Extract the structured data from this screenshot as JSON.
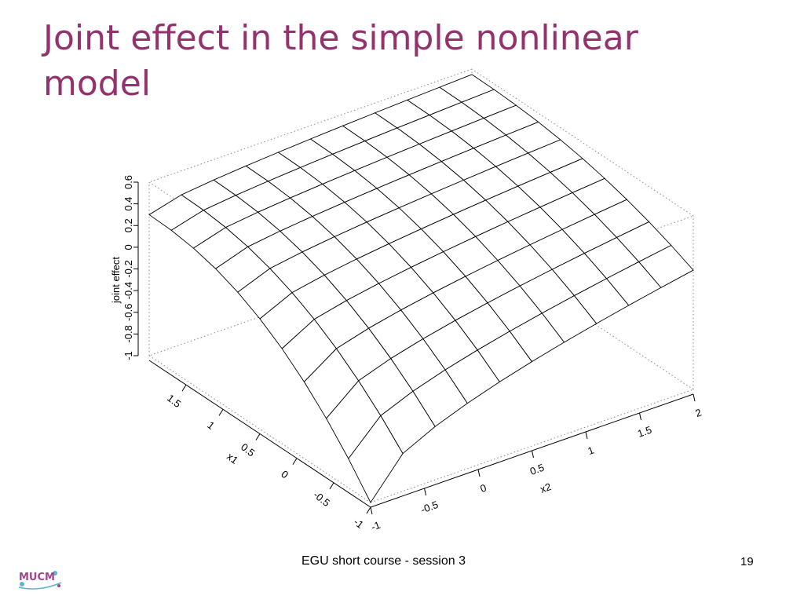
{
  "slide": {
    "title": "Joint effect in the simple nonlinear model",
    "footer": "EGU short course - session 3",
    "page_number": "19",
    "logo_text": "MUCM"
  },
  "chart_data": {
    "type": "surface",
    "zlabel": "joint effect",
    "xlabel": "x1",
    "ylabel": "x2",
    "x1_ticks": [
      "-1",
      "-0.5",
      "0",
      "0.5",
      "1",
      "1.5"
    ],
    "x2_ticks": [
      "-1",
      "-0.5",
      "0",
      "0.5",
      "1",
      "1.5",
      "2"
    ],
    "z_ticks": [
      "-1",
      "-0.8",
      "-0.6",
      "-0.4",
      "-0.2",
      "0",
      "0.2",
      "0.4",
      "0.6"
    ],
    "x1_range": [
      -1,
      2
    ],
    "x2_range": [
      -1,
      2
    ],
    "z_range": [
      -1,
      0.6
    ],
    "grid_size": [
      11,
      11
    ],
    "corner_values": {
      "x1=-1,x2=-1": -1.0,
      "x1=2,x2=-1": 0.3,
      "x1=-1,x2=2": 0.1,
      "x1=2,x2=2": 0.55
    },
    "colors": {
      "title": "#93326c",
      "mesh": "#000000",
      "box": "#888888"
    }
  }
}
